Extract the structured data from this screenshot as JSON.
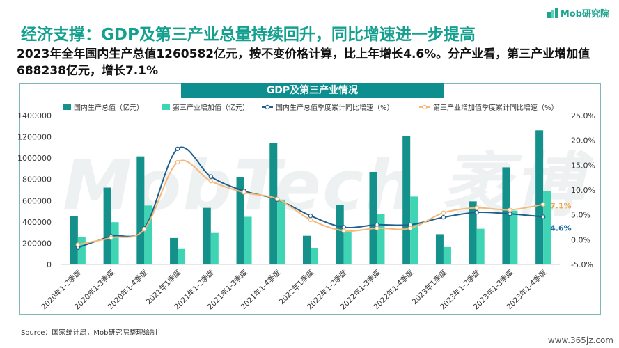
{
  "header": {
    "title": "经济支撑：GDP及第三产业总量持续回升，同比增速进一步提高",
    "subtitle": "2023年全年国内生产总值1260582亿元，按不变价格计算，比上年增长4.6%。分产业看，第三产业增加值688238亿元，增长7.1%",
    "logo": "Mob研究院"
  },
  "footer": {
    "source": "Source：国家统计局，Mob研究院整理绘制",
    "site": "www.365jz.com"
  },
  "watermark": "MobTech 袤博",
  "colors": {
    "gdp_bar": "#13918A",
    "tertiary_bar": "#3ED4B4",
    "gdp_line": "#1F5F8F",
    "tertiary_line": "#F5B879",
    "title": "#13A08F",
    "banner": "#0E8F8F"
  },
  "chart_data": {
    "type": "bar",
    "title": "GDP及第三产业情况",
    "categories": [
      "2020年1-2季度",
      "2020年1-3季度",
      "2020年1-4季度",
      "2021年1季度",
      "2021年1-2季度",
      "2021年1-3季度",
      "2021年1-4季度",
      "2022年1季度",
      "2022年1-2季度",
      "2022年1-3季度",
      "2022年1-4季度",
      "2023年1季度",
      "2023年1-2季度",
      "2023年1-3季度",
      "2023年1-4季度"
    ],
    "ylim_left": [
      0,
      1400000
    ],
    "yticks_left": [
      0,
      200000,
      400000,
      600000,
      800000,
      1000000,
      1200000,
      1400000
    ],
    "ylim_right": [
      -5,
      25
    ],
    "yticks_right": [
      "-5.0%",
      "0.0%",
      "5.0%",
      "10.0%",
      "15.0%",
      "20.0%",
      "25.0%"
    ],
    "bar_series": [
      {
        "name": "国内生产总值（亿元）",
        "values": [
          456614,
          722786,
          1015986,
          249310,
          532167,
          823131,
          1143670,
          270178,
          562642,
          870269,
          1210207,
          284997,
          593034,
          913027,
          1260582
        ]
      },
      {
        "name": "第三产业增加值（亿元）",
        "values": [
          256095,
          397904,
          553977,
          145355,
          296611,
          448546,
          609680,
          153037,
          310145,
          475827,
          638698,
          164475,
          336112,
          506274,
          688238
        ]
      }
    ],
    "line_series": [
      {
        "name": "国内生产总值季度累计同比增速（%）",
        "values": [
          -1.6,
          0.7,
          2.3,
          18.3,
          12.7,
          9.8,
          8.1,
          4.8,
          2.5,
          3.0,
          3.0,
          4.5,
          5.5,
          5.2,
          4.6
        ]
      },
      {
        "name": "第三产业增加值季度累计同比增速（%）",
        "values": [
          -1.0,
          0.4,
          2.1,
          15.6,
          11.8,
          9.5,
          8.2,
          4.0,
          1.8,
          2.3,
          2.3,
          5.4,
          6.4,
          6.0,
          7.1
        ]
      }
    ],
    "end_labels": {
      "gdp": "4.6%",
      "tertiary": "7.1%"
    },
    "legend_position": "top"
  }
}
